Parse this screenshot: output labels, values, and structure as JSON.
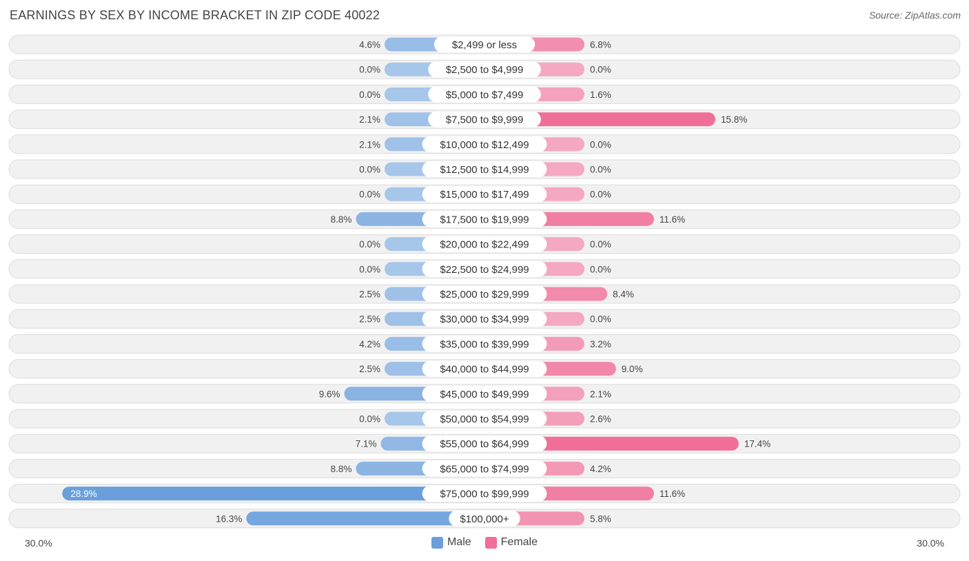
{
  "title": "EARNINGS BY SEX BY INCOME BRACKET IN ZIP CODE 40022",
  "source": "Source: ZipAtlas.com",
  "colors": {
    "male_strong": "#6a9fdc",
    "male_light": "#a6c6ea",
    "female_strong": "#f06e98",
    "female_light": "#f4a8c1",
    "row_bg": "#f1f1f1",
    "row_border": "#dcdcdc"
  },
  "legend": {
    "male": "Male",
    "female": "Female"
  },
  "axis": {
    "left_label": "30.0%",
    "right_label": "30.0%"
  },
  "chart_data": {
    "type": "bar",
    "orientation": "horizontal-diverging",
    "title": "EARNINGS BY SEX BY INCOME BRACKET IN ZIP CODE 40022",
    "xlim": [
      -30,
      30
    ],
    "categories": [
      "$2,499 or less",
      "$2,500 to $4,999",
      "$5,000 to $7,499",
      "$7,500 to $9,999",
      "$10,000 to $12,499",
      "$12,500 to $14,999",
      "$15,000 to $17,499",
      "$17,500 to $19,999",
      "$20,000 to $22,499",
      "$22,500 to $24,999",
      "$25,000 to $29,999",
      "$30,000 to $34,999",
      "$35,000 to $39,999",
      "$40,000 to $44,999",
      "$45,000 to $49,999",
      "$50,000 to $54,999",
      "$55,000 to $64,999",
      "$65,000 to $74,999",
      "$75,000 to $99,999",
      "$100,000+"
    ],
    "series": [
      {
        "name": "Male",
        "values": [
          4.6,
          0.0,
          0.0,
          2.1,
          2.1,
          0.0,
          0.0,
          8.8,
          0.0,
          0.0,
          2.5,
          2.5,
          4.2,
          2.5,
          9.6,
          0.0,
          7.1,
          8.8,
          28.9,
          16.3
        ],
        "labels": [
          "4.6%",
          "0.0%",
          "0.0%",
          "2.1%",
          "2.1%",
          "0.0%",
          "0.0%",
          "8.8%",
          "0.0%",
          "0.0%",
          "2.5%",
          "2.5%",
          "4.2%",
          "2.5%",
          "9.6%",
          "0.0%",
          "7.1%",
          "8.8%",
          "28.9%",
          "16.3%"
        ]
      },
      {
        "name": "Female",
        "values": [
          6.8,
          0.0,
          1.6,
          15.8,
          0.0,
          0.0,
          0.0,
          11.6,
          0.0,
          0.0,
          8.4,
          0.0,
          3.2,
          9.0,
          2.1,
          2.6,
          17.4,
          4.2,
          11.6,
          5.8
        ],
        "labels": [
          "6.8%",
          "0.0%",
          "1.6%",
          "15.8%",
          "0.0%",
          "0.0%",
          "0.0%",
          "11.6%",
          "0.0%",
          "0.0%",
          "8.4%",
          "0.0%",
          "3.2%",
          "9.0%",
          "2.1%",
          "2.6%",
          "17.4%",
          "4.2%",
          "11.6%",
          "5.8%"
        ]
      }
    ]
  }
}
